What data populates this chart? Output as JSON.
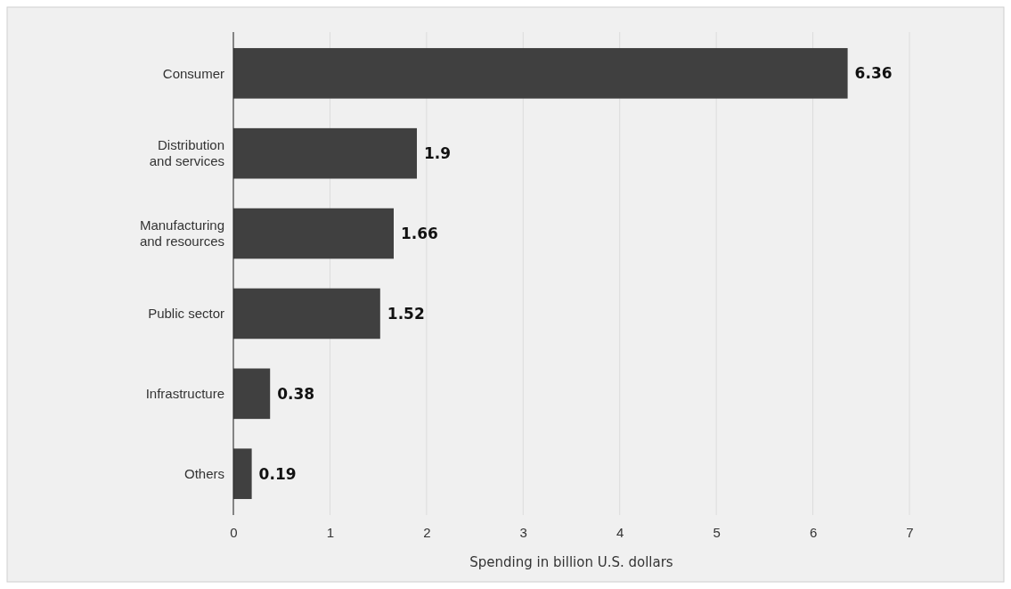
{
  "chart_data": {
    "type": "bar",
    "orientation": "horizontal",
    "xlabel": "Spending in billion U.S. dollars",
    "categories": [
      "Consumer",
      "Distribution and services",
      "Manufacturing and resources",
      "Public sector",
      "Infrastructure",
      "Others"
    ],
    "values": [
      6.36,
      1.9,
      1.66,
      1.52,
      0.38,
      0.19
    ],
    "color": "#404040",
    "xlim": [
      0,
      7
    ],
    "xticks": [
      0,
      1,
      2,
      3,
      4,
      5,
      6,
      7
    ],
    "grid": "x",
    "data_labels": true
  }
}
